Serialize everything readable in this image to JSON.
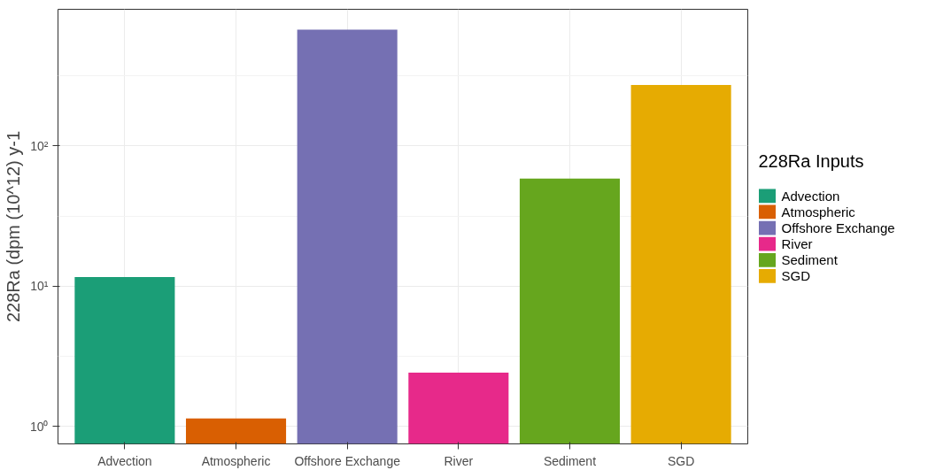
{
  "chart_data": {
    "type": "bar",
    "ylabel": "228Ra (dpm (10^12) y-1",
    "legend_title": "228Ra Inputs",
    "categories": [
      "Advection",
      "Atmospheric",
      "Offshore Exchange",
      "River",
      "Sediment",
      "SGD"
    ],
    "series": [
      {
        "name": "Advection",
        "color": "#1b9e77",
        "values": [
          11.6,
          null,
          null,
          null,
          null,
          null
        ]
      },
      {
        "name": "Atmospheric",
        "color": "#d95f02",
        "values": [
          null,
          1.14,
          null,
          null,
          null,
          null
        ]
      },
      {
        "name": "Offshore Exchange",
        "color": "#7570b3",
        "values": [
          null,
          null,
          676,
          null,
          null,
          null
        ]
      },
      {
        "name": "River",
        "color": "#e7298a",
        "values": [
          null,
          null,
          null,
          2.42,
          null,
          null
        ]
      },
      {
        "name": "Sediment",
        "color": "#66a61e",
        "values": [
          null,
          null,
          null,
          null,
          58.5,
          null
        ]
      },
      {
        "name": "SGD",
        "color": "#e6ab02",
        "values": [
          null,
          null,
          null,
          null,
          null,
          272
        ]
      }
    ],
    "log": "y",
    "ylim": [
      0.75,
      944
    ],
    "yticks": [
      {
        "value": 1,
        "label": "10⁰"
      },
      {
        "value": 10,
        "label": "10¹"
      },
      {
        "value": 100,
        "label": "10²"
      }
    ],
    "grid": true,
    "legend": "right"
  }
}
